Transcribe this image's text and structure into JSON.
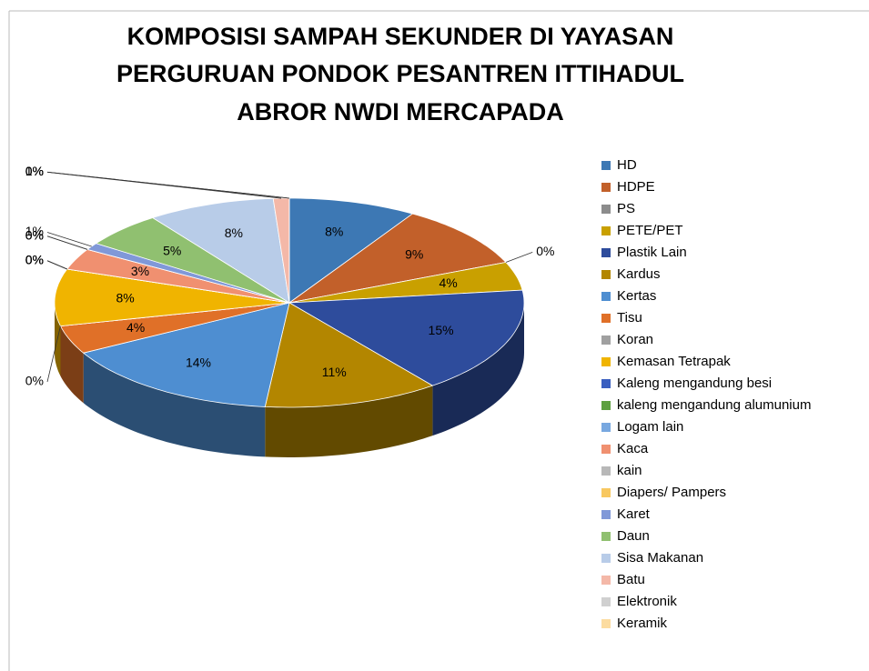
{
  "chart_data": {
    "type": "pie",
    "title": [
      "KOMPOSISI SAMPAH SEKUNDER DI YAYASAN",
      "PERGURUAN PONDOK PESANTREN ITTIHADUL",
      "ABROR NWDI MERCAPADA"
    ],
    "categories": [
      "HD",
      "HDPE",
      "PS",
      "PETE/PET",
      "Plastik Lain",
      "Kardus",
      "Kertas",
      "Tisu",
      "Koran",
      "Kemasan Tetrapak",
      "Kaleng mengandung besi",
      "kaleng mengandung alumunium",
      "Logam lain",
      "Kaca",
      "kain",
      "Diapers/ Pampers",
      "Karet",
      "Daun",
      "Sisa Makanan",
      "Batu",
      "Elektronik",
      "Keramik"
    ],
    "values": [
      8,
      9,
      0,
      4,
      15,
      11,
      14,
      4,
      0,
      8,
      0,
      0,
      0,
      3,
      0,
      0,
      1,
      5,
      8,
      1,
      0,
      0
    ],
    "value_labels": [
      "8%",
      "9%",
      "0%",
      "4%",
      "15%",
      "11%",
      "14%",
      "4%",
      "0%",
      "8%",
      "0%",
      "0%",
      "0%",
      "3%",
      "0%",
      "0%",
      "1%",
      "5%",
      "8%",
      "1%",
      "0%",
      "0%"
    ],
    "colors": [
      "#3d78b4",
      "#c2602a",
      "#8c8c8c",
      "#c9a000",
      "#2e4c9c",
      "#b38600",
      "#4e8ed1",
      "#e07028",
      "#a0a0a0",
      "#f0b400",
      "#3a5fc0",
      "#5ea040",
      "#78a8e0",
      "#f09070",
      "#b8b8b8",
      "#f8c860",
      "#8098d8",
      "#90c070",
      "#b8cce8",
      "#f4b8a8",
      "#d0d0d0",
      "#fcdca0"
    ],
    "legend": "right"
  }
}
